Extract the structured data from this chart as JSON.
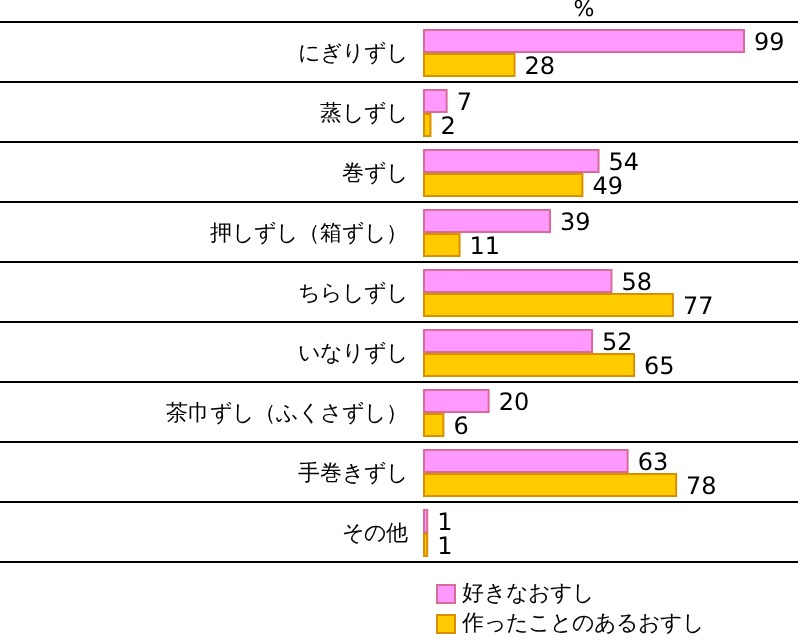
{
  "chart_data": {
    "type": "bar",
    "orientation": "horizontal",
    "xlabel": "%",
    "categories": [
      "にぎりずし",
      "蒸しずし",
      "巻ずし",
      "押しずし（箱ずし）",
      "ちらしずし",
      "いなりずし",
      "茶巾ずし（ふくさずし）",
      "手巻きずし",
      "その他"
    ],
    "series": [
      {
        "name": "好きなおすし",
        "color": "#ff99ff",
        "values": [
          99,
          7,
          54,
          39,
          58,
          52,
          20,
          63,
          1
        ]
      },
      {
        "name": "作ったことのあるおすし",
        "color": "#ffcc00",
        "values": [
          28,
          2,
          49,
          11,
          77,
          65,
          6,
          78,
          1
        ]
      }
    ],
    "data_labels": true,
    "grid": "y",
    "legend": "bottom right"
  }
}
